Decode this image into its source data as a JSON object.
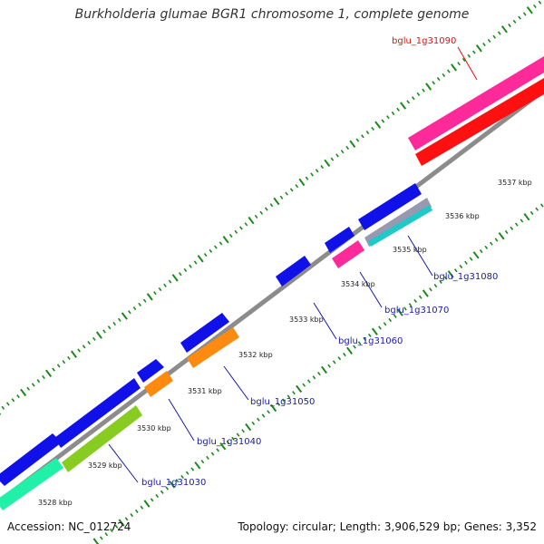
{
  "title": "Burkholderia glumae BGR1 chromosome 1, complete genome",
  "footer": {
    "accession": "Accession: NC_012724",
    "summary": "Topology: circular; Length: 3,906,529 bp; Genes: 3,352"
  },
  "colors": {
    "backbone": "#8c8c8c",
    "tick": "#1a8a1a",
    "kbp_label": "#222222",
    "gene_label_blue": "#1a1aa8",
    "gene_label_red": "#e01010",
    "blue_gene": "#1010e8",
    "pink_gene": "#ff2a9a",
    "red_gene": "#ff1010",
    "orange_gene": "#ff8a10",
    "olive_gene": "#88cc22",
    "teal_gene": "#20f0a8",
    "cyan_gene": "#20c8c8",
    "gray_gene": "#9898b0"
  },
  "kbp_labels": [
    "3528 kbp",
    "3529 kbp",
    "3530 kbp",
    "3531 kbp",
    "3532 kbp",
    "3533 kbp",
    "3534 kbp",
    "3535 kbp",
    "3536 kbp",
    "3537 kbp"
  ],
  "gene_labels": [
    {
      "text": "bglu_1g31030",
      "color": "blue"
    },
    {
      "text": "bglu_1g31040",
      "color": "blue"
    },
    {
      "text": "bglu_1g31050",
      "color": "blue"
    },
    {
      "text": "bglu_1g31060",
      "color": "blue"
    },
    {
      "text": "bglu_1g31070",
      "color": "blue"
    },
    {
      "text": "bglu_1g31080",
      "color": "blue"
    },
    {
      "text": "bglu_1g31090",
      "color": "red"
    }
  ]
}
